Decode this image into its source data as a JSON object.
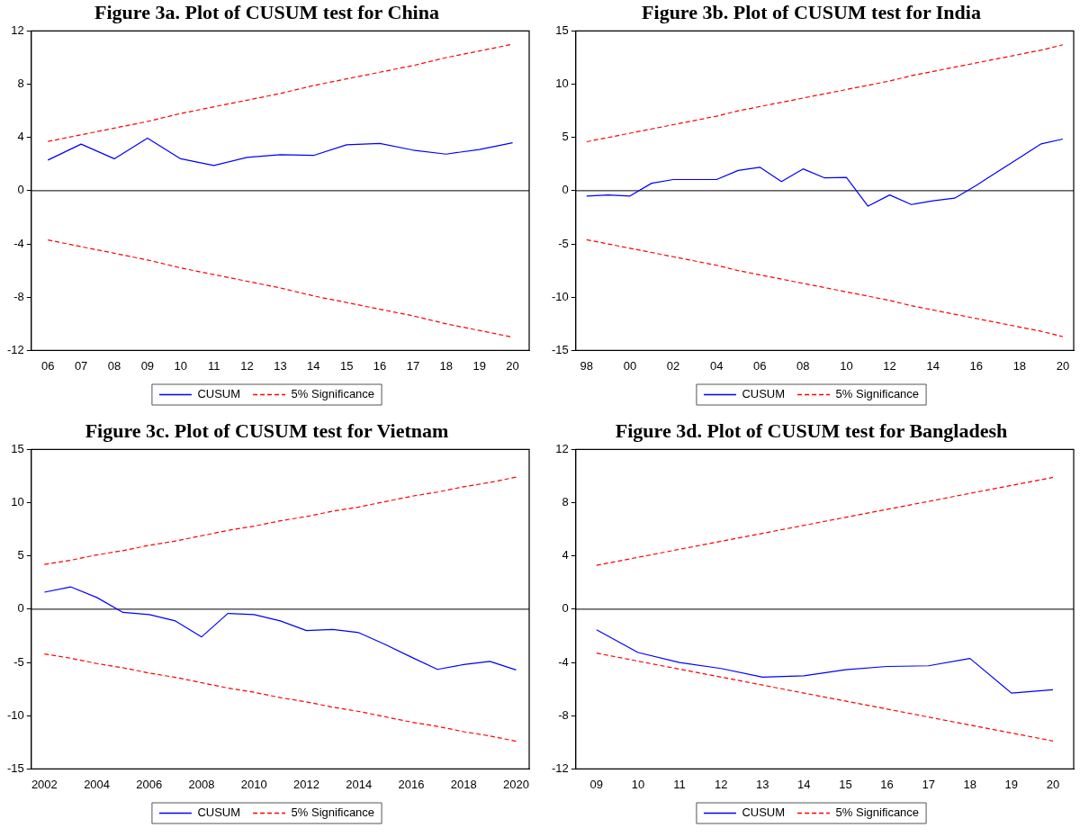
{
  "chart_data": [
    {
      "type": "line",
      "title": "Figure 3a. Plot of CUSUM test for China",
      "categories": [
        "06",
        "07",
        "08",
        "09",
        "10",
        "11",
        "12",
        "13",
        "14",
        "15",
        "16",
        "17",
        "18",
        "19",
        "20"
      ],
      "series": [
        {
          "name": "CUSUM",
          "color": "#0000ff",
          "values": [
            2.3,
            3.5,
            2.4,
            3.95,
            2.4,
            1.9,
            2.5,
            2.7,
            2.65,
            3.45,
            3.55,
            3.05,
            2.75,
            3.1,
            3.6
          ]
        },
        {
          "name": "5% Significance",
          "color": "#ff0000",
          "line_style": "dashed",
          "values": [
            3.7,
            4.2,
            4.7,
            5.2,
            5.8,
            6.3,
            6.8,
            7.3,
            7.9,
            8.4,
            8.9,
            9.4,
            10.0,
            10.5,
            11.0
          ]
        },
        {
          "color": "#ff0000",
          "line_style": "dashed",
          "values": [
            -3.7,
            -4.2,
            -4.7,
            -5.2,
            -5.8,
            -6.3,
            -6.8,
            -7.3,
            -7.9,
            -8.4,
            -8.9,
            -9.4,
            -10.0,
            -10.5,
            -11.0
          ]
        }
      ],
      "ylim": [
        -12,
        12
      ],
      "yticks": [
        -12,
        -8,
        -4,
        0,
        4,
        8,
        12
      ],
      "ref_lines": [
        {
          "axis": "y",
          "value": 0,
          "color": "#000000"
        }
      ],
      "legend": "bottom",
      "marker": "none"
    },
    {
      "type": "line",
      "title": "Figure 3b. Plot of CUSUM test for India",
      "categories": [
        "98",
        null,
        "00",
        null,
        "02",
        null,
        "04",
        null,
        "06",
        null,
        "08",
        null,
        "10",
        null,
        "12",
        null,
        "14",
        null,
        "16",
        null,
        "18",
        null,
        "20"
      ],
      "series": [
        {
          "name": "CUSUM",
          "color": "#0000ff",
          "values": [
            -0.5,
            -0.4,
            -0.5,
            0.7,
            1.05,
            1.05,
            1.05,
            1.9,
            2.2,
            0.85,
            2.05,
            1.2,
            1.25,
            -1.45,
            -0.4,
            -1.3,
            -0.95,
            -0.7,
            0.5,
            1.8,
            3.1,
            4.4,
            4.85
          ]
        },
        {
          "name": "5% Significance",
          "color": "#ff0000",
          "line_style": "dashed",
          "values": [
            4.6,
            5.0,
            5.4,
            5.8,
            6.2,
            6.6,
            7.0,
            7.5,
            7.9,
            8.3,
            8.7,
            9.1,
            9.5,
            9.9,
            10.3,
            10.8,
            11.2,
            11.6,
            12.0,
            12.4,
            12.8,
            13.2,
            13.7
          ]
        },
        {
          "color": "#ff0000",
          "line_style": "dashed",
          "values": [
            -4.6,
            -5.0,
            -5.4,
            -5.8,
            -6.2,
            -6.6,
            -7.0,
            -7.5,
            -7.9,
            -8.3,
            -8.7,
            -9.1,
            -9.5,
            -9.9,
            -10.3,
            -10.8,
            -11.2,
            -11.6,
            -12.0,
            -12.4,
            -12.8,
            -13.2,
            -13.7
          ]
        }
      ],
      "ylim": [
        -15,
        15
      ],
      "yticks": [
        -15,
        -10,
        -5,
        0,
        5,
        10,
        15
      ],
      "ref_lines": [
        {
          "axis": "y",
          "value": 0,
          "color": "#000000"
        }
      ],
      "legend": "bottom",
      "marker": "none"
    },
    {
      "type": "line",
      "title": "Figure 3c. Plot of CUSUM test for Vietnam",
      "categories": [
        "2002",
        null,
        "2004",
        null,
        "2006",
        null,
        "2008",
        null,
        "2010",
        null,
        "2012",
        null,
        "2014",
        null,
        "2016",
        null,
        "2018",
        null,
        "2020"
      ],
      "series": [
        {
          "name": "CUSUM",
          "color": "#0000ff",
          "values": [
            1.6,
            2.1,
            1.1,
            -0.3,
            -0.5,
            -1.1,
            -2.6,
            -0.4,
            -0.5,
            -1.1,
            -2.0,
            -1.9,
            -2.2,
            -3.3,
            -4.5,
            -5.65,
            -5.2,
            -4.9,
            -5.7
          ]
        },
        {
          "name": "5% Significance",
          "color": "#ff0000",
          "line_style": "dashed",
          "values": [
            4.2,
            4.6,
            5.1,
            5.5,
            6.0,
            6.4,
            6.9,
            7.4,
            7.8,
            8.3,
            8.7,
            9.2,
            9.6,
            10.1,
            10.6,
            11.0,
            11.5,
            11.9,
            12.4
          ]
        },
        {
          "color": "#ff0000",
          "line_style": "dashed",
          "values": [
            -4.2,
            -4.6,
            -5.1,
            -5.5,
            -6.0,
            -6.4,
            -6.9,
            -7.4,
            -7.8,
            -8.3,
            -8.7,
            -9.2,
            -9.6,
            -10.1,
            -10.6,
            -11.0,
            -11.5,
            -11.9,
            -12.4
          ]
        }
      ],
      "ylim": [
        -15,
        15
      ],
      "yticks": [
        -15,
        -10,
        -5,
        0,
        5,
        10,
        15
      ],
      "ref_lines": [
        {
          "axis": "y",
          "value": 0,
          "color": "#000000"
        }
      ],
      "legend": "bottom",
      "marker": "none"
    },
    {
      "type": "line",
      "title": "Figure 3d. Plot of CUSUM test for Bangladesh",
      "categories": [
        "09",
        "10",
        "11",
        "12",
        "13",
        "14",
        "15",
        "16",
        "17",
        "18",
        "19",
        "20"
      ],
      "series": [
        {
          "name": "CUSUM",
          "color": "#0000ff",
          "values": [
            -1.55,
            -3.25,
            -4.0,
            -4.45,
            -5.1,
            -5.0,
            -4.55,
            -4.3,
            -4.25,
            -3.7,
            -6.3,
            -6.05
          ]
        },
        {
          "name": "5% Significance",
          "color": "#ff0000",
          "line_style": "dashed",
          "values": [
            3.3,
            3.9,
            4.5,
            5.1,
            5.7,
            6.3,
            6.9,
            7.5,
            8.1,
            8.7,
            9.3,
            9.9
          ]
        },
        {
          "color": "#ff0000",
          "line_style": "dashed",
          "values": [
            -3.3,
            -3.9,
            -4.5,
            -5.1,
            -5.7,
            -6.3,
            -6.9,
            -7.5,
            -8.1,
            -8.7,
            -9.3,
            -9.9
          ]
        }
      ],
      "ylim": [
        -12,
        12
      ],
      "yticks": [
        -12,
        -8,
        -4,
        0,
        4,
        8,
        12
      ],
      "ref_lines": [
        {
          "axis": "y",
          "value": 0,
          "color": "#000000"
        }
      ],
      "legend": "bottom",
      "marker": "none"
    }
  ]
}
